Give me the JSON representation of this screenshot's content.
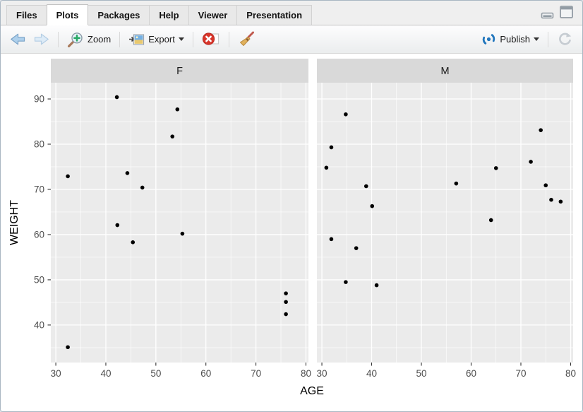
{
  "tabbar": {
    "active_tab": "Plots",
    "tabs": [
      {
        "label": "Files"
      },
      {
        "label": "Plots"
      },
      {
        "label": "Packages"
      },
      {
        "label": "Help"
      },
      {
        "label": "Viewer"
      },
      {
        "label": "Presentation"
      }
    ]
  },
  "toolbar": {
    "zoom_label": "Zoom",
    "export_label": "Export",
    "publish_label": "Publish",
    "icons": [
      "back-icon",
      "forward-icon",
      "zoom-plus-icon",
      "export-image-icon",
      "remove-plot-icon",
      "clear-all-broom-icon",
      "publish-icon",
      "refresh-icon",
      "minimize-icon",
      "maximize-icon"
    ]
  },
  "chart_data": {
    "type": "scatter",
    "xlabel": "AGE",
    "ylabel": "WEIGHT",
    "xlim": [
      29.0,
      80.5
    ],
    "ylim": [
      31.7,
      93.6
    ],
    "x_ticks": [
      30,
      40,
      50,
      60,
      70,
      80
    ],
    "y_ticks": [
      40,
      50,
      60,
      70,
      80,
      90
    ],
    "x_minor_ticks": [
      35,
      45,
      55,
      65,
      75
    ],
    "y_minor_ticks": [
      35,
      45,
      55,
      65,
      75,
      85
    ],
    "grid": true,
    "legend": "none",
    "facets": [
      {
        "label": "F",
        "points": [
          [
            32.4,
            35.1
          ],
          [
            32.4,
            72.9
          ],
          [
            42.2,
            90.4
          ],
          [
            42.3,
            62.1
          ],
          [
            44.3,
            73.6
          ],
          [
            45.4,
            58.3
          ],
          [
            47.3,
            70.4
          ],
          [
            53.3,
            81.7
          ],
          [
            54.3,
            87.7
          ],
          [
            55.3,
            60.2
          ],
          [
            76.0,
            47.0
          ],
          [
            76.0,
            45.1
          ],
          [
            76.0,
            42.4
          ]
        ]
      },
      {
        "label": "M",
        "points": [
          [
            30.9,
            74.8
          ],
          [
            31.9,
            79.3
          ],
          [
            31.9,
            59.0
          ],
          [
            34.8,
            86.6
          ],
          [
            34.8,
            49.5
          ],
          [
            36.9,
            57.0
          ],
          [
            38.9,
            70.7
          ],
          [
            40.1,
            66.3
          ],
          [
            41.0,
            48.8
          ],
          [
            57.0,
            71.3
          ],
          [
            64.0,
            63.2
          ],
          [
            65.0,
            74.7
          ],
          [
            72.0,
            76.1
          ],
          [
            74.0,
            83.1
          ],
          [
            75.0,
            70.9
          ],
          [
            76.1,
            67.7
          ],
          [
            78.0,
            67.3
          ]
        ]
      }
    ],
    "colors": {
      "panel_bg": "#ebebeb",
      "strip_bg": "#d9d9d9",
      "grid": "#ffffff",
      "point": "#000000",
      "axis_text": "#4d4d4d",
      "axis_title": "#000000",
      "strip_text": "#1a1a1a",
      "tick_mark": "#333333"
    }
  },
  "ui_colors": {
    "accent_blue": "#2176bd",
    "delete_red": "#d7352a",
    "toolbar_border": "#d7d7d7"
  }
}
